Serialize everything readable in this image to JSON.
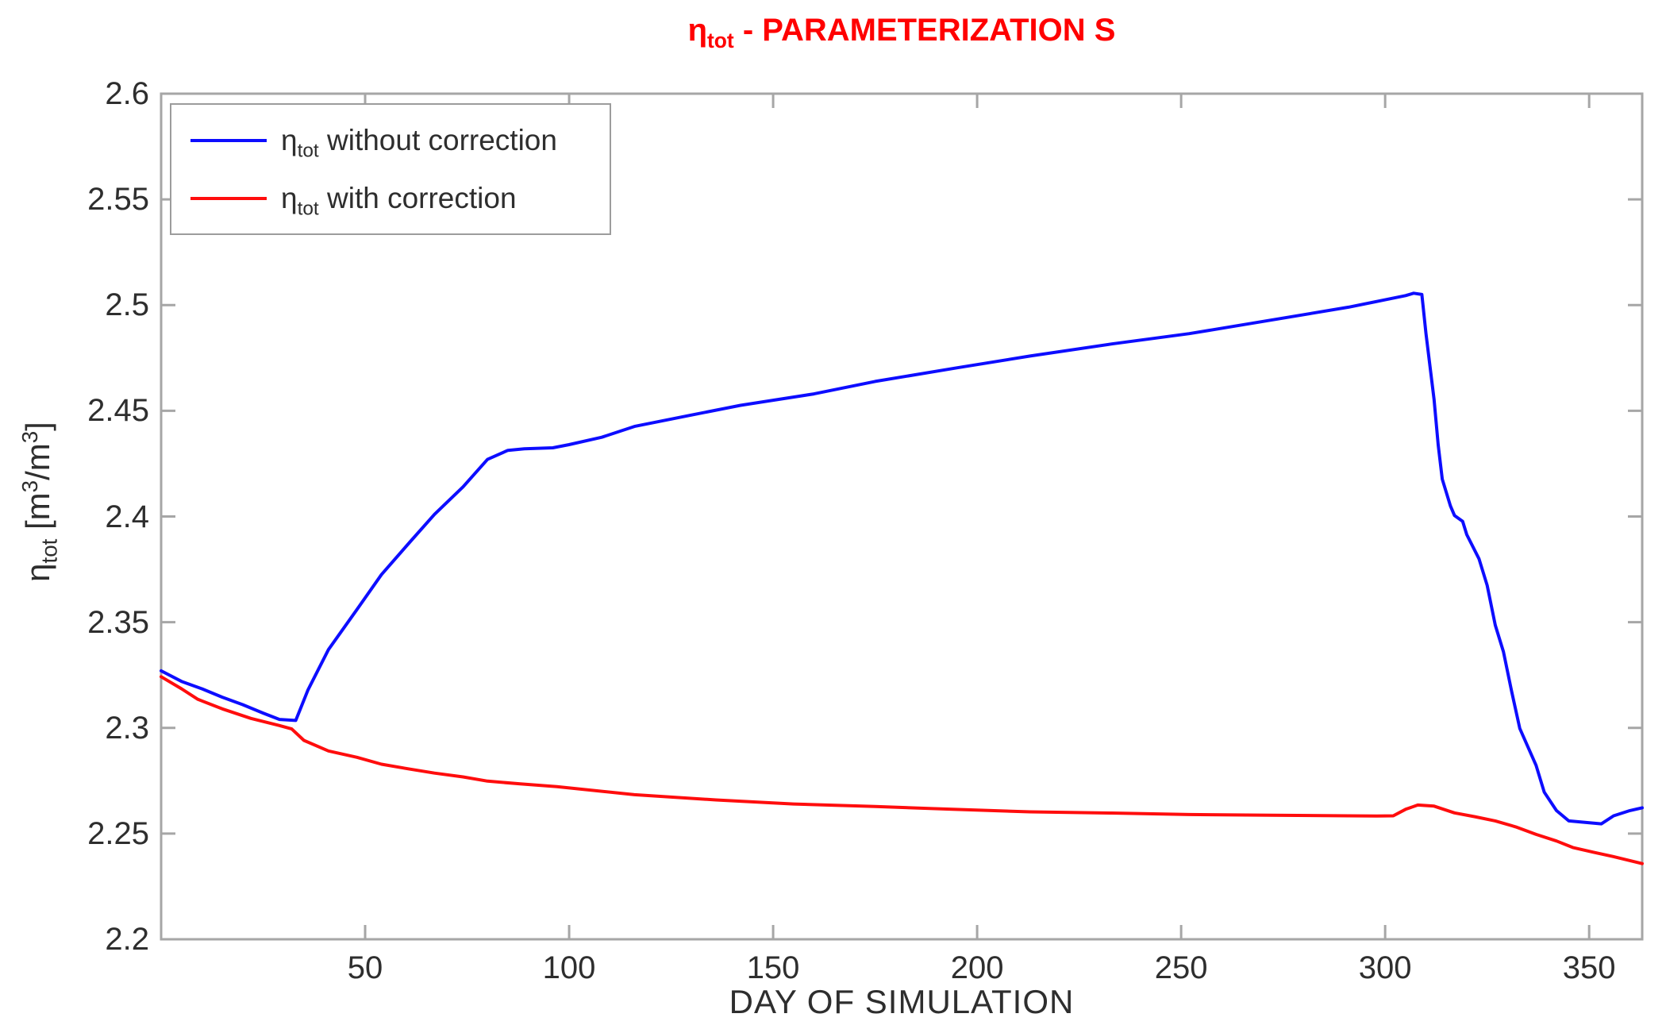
{
  "title": {
    "rich_text": "η_{tot} - PARAMETERIZATION S",
    "color": "#ff0000"
  },
  "x_axis": {
    "label": "DAY OF SIMULATION",
    "min": 0,
    "max": 363,
    "ticks": [
      50,
      100,
      150,
      200,
      250,
      300,
      350
    ],
    "tick_labels": [
      "50",
      "100",
      "150",
      "200",
      "250",
      "300",
      "350"
    ]
  },
  "y_axis": {
    "rich_label": "η_{tot} [m^{3}/m^{3}]",
    "min": 2.2,
    "max": 2.6,
    "ticks": [
      2.2,
      2.25,
      2.3,
      2.35,
      2.4,
      2.45,
      2.5,
      2.55,
      2.6
    ],
    "tick_labels": [
      "2.2",
      "2.25",
      "2.3",
      "2.35",
      "2.4",
      "2.45",
      "2.5",
      "2.55",
      "2.6"
    ]
  },
  "legend": {
    "entries": [
      {
        "rich_label": "η_{tot} without correction",
        "color": "#0d0dff"
      },
      {
        "rich_label": "η_{tot} with correction",
        "color": "#ff0d0d"
      }
    ]
  },
  "colors": {
    "axis_box": "#a6a6a6",
    "tick_mark": "#a6a6a6",
    "text": "#2e2e2e",
    "title": "#ff0000",
    "background": "#ffffff",
    "series_without_correction": "#0d0dff",
    "series_with_correction": "#ff0d0d"
  },
  "chart_data": {
    "type": "line",
    "title": "η_tot - PARAMETERIZATION S",
    "xlabel": "DAY OF SIMULATION",
    "ylabel": "η_tot [m3/m3]",
    "xlim": [
      0,
      363
    ],
    "ylim": [
      2.2,
      2.6
    ],
    "grid": false,
    "legend_position": "top-left",
    "series": [
      {
        "name": "η_tot without correction",
        "color": "#0d0dff",
        "points": [
          [
            0,
            2.327
          ],
          [
            5,
            2.322
          ],
          [
            10,
            2.3185
          ],
          [
            15,
            2.3145
          ],
          [
            20,
            2.311
          ],
          [
            25,
            2.307
          ],
          [
            29,
            2.304
          ],
          [
            33,
            2.3035
          ],
          [
            36,
            2.318
          ],
          [
            41,
            2.337
          ],
          [
            48,
            2.356
          ],
          [
            54,
            2.3725
          ],
          [
            61,
            2.388
          ],
          [
            67,
            2.401
          ],
          [
            74,
            2.414
          ],
          [
            80,
            2.427
          ],
          [
            85,
            2.4313
          ],
          [
            89,
            2.432
          ],
          [
            96,
            2.4325
          ],
          [
            100,
            2.434
          ],
          [
            108,
            2.4375
          ],
          [
            116,
            2.4426
          ],
          [
            130,
            2.448
          ],
          [
            142,
            2.4526
          ],
          [
            160,
            2.458
          ],
          [
            175,
            2.4639
          ],
          [
            195,
            2.4703
          ],
          [
            213,
            2.4759
          ],
          [
            233,
            2.4816
          ],
          [
            252,
            2.4865
          ],
          [
            272,
            2.4929
          ],
          [
            291,
            2.499
          ],
          [
            300,
            2.5025
          ],
          [
            305,
            2.5045
          ],
          [
            307,
            2.5056
          ],
          [
            309,
            2.505
          ],
          [
            310,
            2.4865
          ],
          [
            312,
            2.4553
          ],
          [
            313,
            2.4338
          ],
          [
            314,
            2.4177
          ],
          [
            316,
            2.405
          ],
          [
            317,
            2.4005
          ],
          [
            319,
            2.3977
          ],
          [
            320,
            2.3914
          ],
          [
            323,
            2.38
          ],
          [
            325,
            2.3674
          ],
          [
            327,
            2.3486
          ],
          [
            329,
            2.336
          ],
          [
            331,
            2.3173
          ],
          [
            333,
            2.2997
          ],
          [
            337,
            2.2823
          ],
          [
            339,
            2.2696
          ],
          [
            342,
            2.2609
          ],
          [
            345,
            2.256
          ],
          [
            349,
            2.2553
          ],
          [
            353,
            2.2546
          ],
          [
            356,
            2.2584
          ],
          [
            360,
            2.2609
          ],
          [
            363,
            2.2622
          ]
        ]
      },
      {
        "name": "η_tot with correction",
        "color": "#ff0d0d",
        "points": [
          [
            0,
            2.3242
          ],
          [
            5,
            2.3185
          ],
          [
            9,
            2.3135
          ],
          [
            15,
            2.309
          ],
          [
            22,
            2.3045
          ],
          [
            29,
            2.3011
          ],
          [
            32,
            2.2995
          ],
          [
            35,
            2.2941
          ],
          [
            41,
            2.2891
          ],
          [
            48,
            2.2861
          ],
          [
            54,
            2.2828
          ],
          [
            61,
            2.2805
          ],
          [
            67,
            2.2786
          ],
          [
            74,
            2.2768
          ],
          [
            80,
            2.2748
          ],
          [
            88,
            2.2735
          ],
          [
            97,
            2.2722
          ],
          [
            116,
            2.2684
          ],
          [
            136,
            2.2659
          ],
          [
            155,
            2.264
          ],
          [
            175,
            2.2628
          ],
          [
            194,
            2.2615
          ],
          [
            213,
            2.2603
          ],
          [
            233,
            2.2597
          ],
          [
            252,
            2.259
          ],
          [
            272,
            2.2587
          ],
          [
            291,
            2.2584
          ],
          [
            298,
            2.2583
          ],
          [
            302,
            2.2584
          ],
          [
            305,
            2.2615
          ],
          [
            308,
            2.2635
          ],
          [
            312,
            2.263
          ],
          [
            317,
            2.2598
          ],
          [
            322,
            2.258
          ],
          [
            327,
            2.256
          ],
          [
            332,
            2.2532
          ],
          [
            337,
            2.2496
          ],
          [
            342,
            2.2465
          ],
          [
            346,
            2.2434
          ],
          [
            351,
            2.2412
          ],
          [
            356,
            2.2391
          ],
          [
            363,
            2.2358
          ]
        ]
      }
    ]
  }
}
